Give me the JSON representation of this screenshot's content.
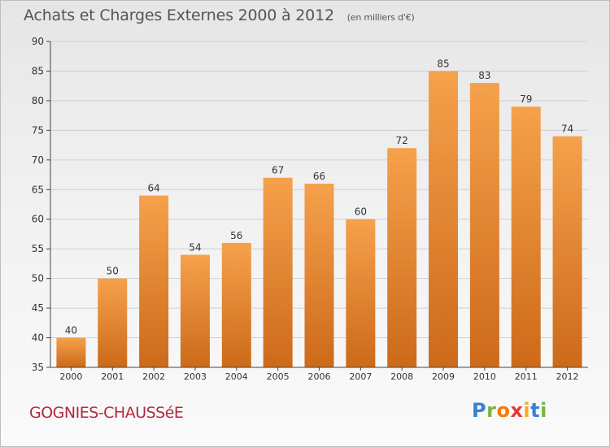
{
  "header": {
    "title": "Achats et Charges Externes 2000 à 2012",
    "unit": "(en milliers d'€)"
  },
  "footer": {
    "commune": "GOGNIES-CHAUSSéE",
    "brand": [
      "P",
      "r",
      "o",
      "x",
      "i",
      "t",
      "i"
    ],
    "brand_colors": [
      "#3a7fd6",
      "#7cb342",
      "#f57c00",
      "#e53935",
      "#f9a825",
      "#3a7fd6",
      "#7cb342"
    ]
  },
  "colors": {
    "bar_top": "#f6a14c",
    "bar_bottom": "#cc6a1a",
    "grid": "#cfcfcf",
    "axis": "#444444",
    "label": "#333333"
  },
  "chart_data": {
    "type": "bar",
    "title": "Achats et Charges Externes 2000 à 2012",
    "subtitle": "(en milliers d'€)",
    "xlabel": "",
    "ylabel": "",
    "categories": [
      "2000",
      "2001",
      "2002",
      "2003",
      "2004",
      "2005",
      "2006",
      "2007",
      "2008",
      "2009",
      "2010",
      "2011",
      "2012"
    ],
    "values": [
      40,
      50,
      64,
      54,
      56,
      67,
      66,
      60,
      72,
      85,
      83,
      79,
      74
    ],
    "ylim": [
      35,
      90
    ],
    "yticks": [
      35,
      40,
      45,
      50,
      55,
      60,
      65,
      70,
      75,
      80,
      85,
      90
    ],
    "grid": true,
    "legend": "none"
  }
}
